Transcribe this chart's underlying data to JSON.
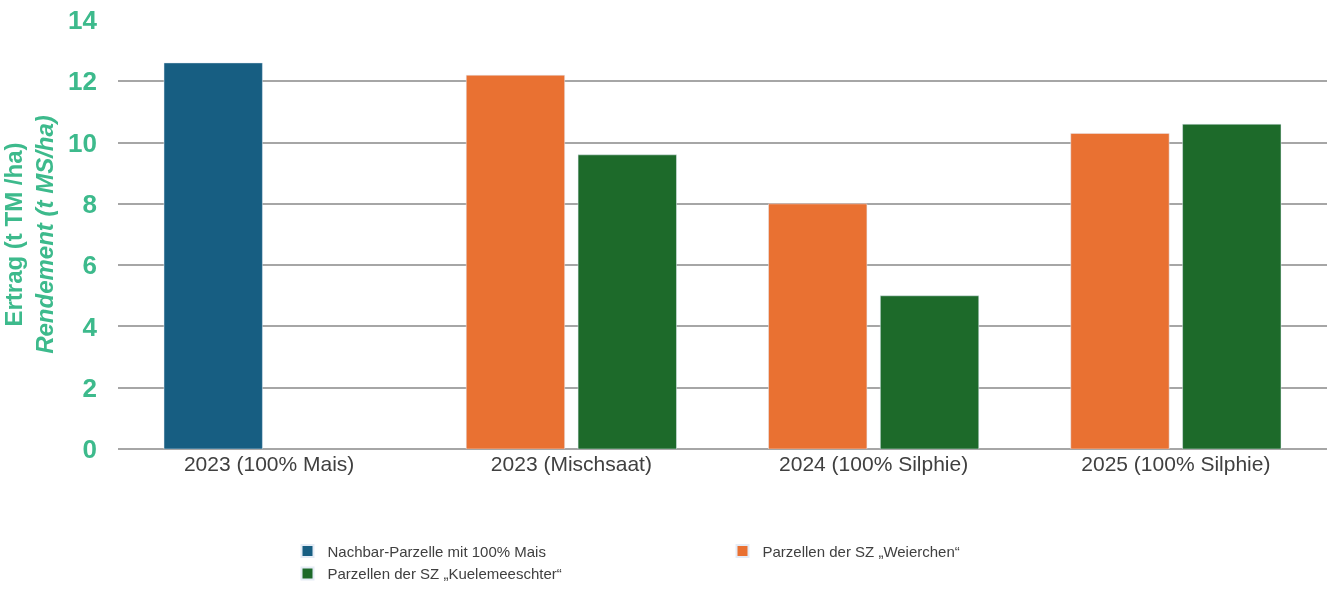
{
  "chart_data": {
    "type": "bar",
    "categories": [
      "2023 (100% Mais)",
      "2023 (Mischsaat)",
      "2024 (100% Silphie)",
      "2025 (100% Silphie)"
    ],
    "series": [
      {
        "name": "Nachbar-Parzelle mit 100% Mais",
        "color": "#175e82",
        "values": [
          12.6,
          null,
          null,
          null
        ]
      },
      {
        "name": "Parzellen der SZ „Weierchen“",
        "color": "#e97132",
        "values": [
          null,
          12.2,
          8.0,
          10.3
        ]
      },
      {
        "name": "Parzellen der SZ „Kuelemeeschter“",
        "color": "#1d6a2a",
        "values": [
          null,
          9.6,
          5.0,
          10.6
        ]
      }
    ],
    "ylabel": "Ertrag (t TM /ha)\nRendement (t MS/ha)",
    "ylim": [
      0,
      14
    ],
    "yticks": [
      0,
      2,
      4,
      6,
      8,
      10,
      12,
      14
    ],
    "grid": "y",
    "legend": "bottom"
  }
}
